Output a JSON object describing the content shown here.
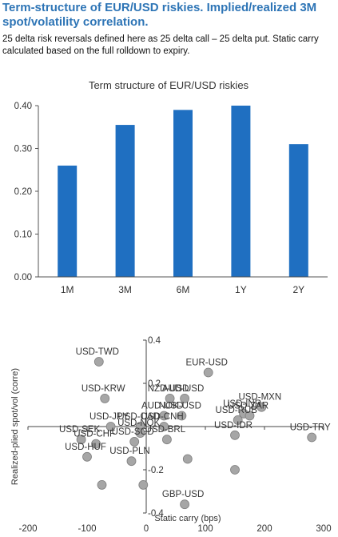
{
  "heading": "Term-structure of EUR/USD riskies. Implied/realized 3M spot/volatility correlation.",
  "subtext": "25 delta risk reversals defined here as 25 delta call – 25 delta put. Static carry calculated based on the full rolldown to expiry.",
  "chart_data": [
    {
      "type": "bar",
      "title": "Term structure of EUR/USD riskies",
      "categories": [
        "1M",
        "3M",
        "6M",
        "1Y",
        "2Y"
      ],
      "values": [
        0.26,
        0.355,
        0.39,
        0.4,
        0.31
      ],
      "ylim": [
        0,
        0.4
      ],
      "yticks": [
        "0.00",
        "0.10",
        "0.20",
        "0.30",
        "0.40"
      ],
      "color": "#1F6FC1",
      "grid": false
    },
    {
      "type": "scatter",
      "xlabel": "Static carry (bps)",
      "ylabel": "Realized-plied spot/vol (corre)",
      "xlim": [
        -200,
        300
      ],
      "ylim": [
        -0.4,
        0.4
      ],
      "xticks": [
        "-200",
        "-100",
        "0",
        "100",
        "200",
        "300"
      ],
      "yticks": [
        "0.4",
        "0.2",
        "-0.2",
        "-0.4"
      ],
      "marker_color": "#A6A6A6",
      "points": [
        {
          "label": "USD-TWD",
          "x": -80,
          "y": 0.3
        },
        {
          "label": "EUR-USD",
          "x": 105,
          "y": 0.25
        },
        {
          "label": "USD-KRW",
          "x": -70,
          "y": 0.13
        },
        {
          "label": "NZD-USD",
          "x": 40,
          "y": 0.13
        },
        {
          "label": "AUD-USD",
          "x": 65,
          "y": 0.13
        },
        {
          "label": "USD-MXN",
          "x": 195,
          "y": 0.09
        },
        {
          "label": "USD-INR",
          "x": 165,
          "y": 0.06
        },
        {
          "label": "AUD-USD",
          "x": 30,
          "y": 0.05
        },
        {
          "label": "NOK-USD",
          "x": 60,
          "y": 0.05
        },
        {
          "label": "USD-ZAR",
          "x": 175,
          "y": 0.05
        },
        {
          "label": "USD-RUB",
          "x": 155,
          "y": 0.03
        },
        {
          "label": "USD-TRY",
          "x": 280,
          "y": -0.05
        },
        {
          "label": "USD-JPY",
          "x": -60,
          "y": 0.0
        },
        {
          "label": "USD-CAD",
          "x": -10,
          "y": 0.0
        },
        {
          "label": "USD-CNH",
          "x": 30,
          "y": 0.0
        },
        {
          "label": "USD-SEK",
          "x": -110,
          "y": -0.06
        },
        {
          "label": "USD-NOK",
          "x": -10,
          "y": -0.03
        },
        {
          "label": "USD-CHF",
          "x": -85,
          "y": -0.08
        },
        {
          "label": "USD-SGD",
          "x": -20,
          "y": -0.07
        },
        {
          "label": "USD-BRL",
          "x": 35,
          "y": -0.06
        },
        {
          "label": "USD-IDR",
          "x": 150,
          "y": -0.04
        },
        {
          "label": "USD-HUF",
          "x": -100,
          "y": -0.14
        },
        {
          "label": "USD-PLN",
          "x": -25,
          "y": -0.16
        },
        {
          "label": "",
          "x": 70,
          "y": -0.15
        },
        {
          "label": "",
          "x": 150,
          "y": -0.2
        },
        {
          "label": "",
          "x": -75,
          "y": -0.27
        },
        {
          "label": "",
          "x": -5,
          "y": -0.27
        },
        {
          "label": "GBP-USD",
          "x": 65,
          "y": -0.36
        }
      ]
    }
  ]
}
